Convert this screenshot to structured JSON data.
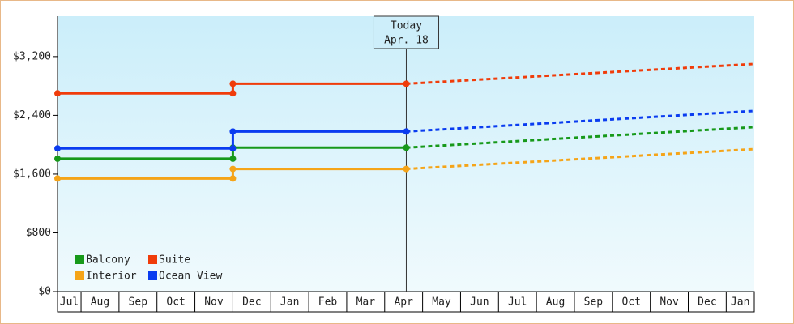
{
  "chart_data": {
    "type": "line",
    "categories": [
      "Jul",
      "Aug",
      "Sep",
      "Oct",
      "Nov",
      "Dec",
      "Jan",
      "Feb",
      "Mar",
      "Apr",
      "May",
      "Jun",
      "Jul",
      "Aug",
      "Sep",
      "Oct",
      "Nov",
      "Dec",
      "Jan"
    ],
    "xlim": [
      0.38,
      18.74
    ],
    "ylim": [
      0,
      3750
    ],
    "yticks": [
      {
        "value": 0,
        "label": "$0"
      },
      {
        "value": 800,
        "label": "$800"
      },
      {
        "value": 1600,
        "label": "$1,600"
      },
      {
        "value": 2400,
        "label": "$2,400"
      },
      {
        "value": 3200,
        "label": "$3,200"
      }
    ],
    "today": {
      "label": [
        "Today",
        "Apr. 18"
      ],
      "x": 9.57
    },
    "series": [
      {
        "name": "Balcony",
        "color": "#17991a",
        "x": [
          0.38,
          5,
          5,
          9.57
        ],
        "values": [
          1810,
          1810,
          1960,
          1960
        ],
        "forecast": {
          "x": [
            9.57,
            18.74
          ],
          "values": [
            1960,
            2240
          ]
        }
      },
      {
        "name": "Suite",
        "color": "#f03c0a",
        "x": [
          0.38,
          5,
          5,
          9.57
        ],
        "values": [
          2700,
          2700,
          2830,
          2830
        ],
        "forecast": {
          "x": [
            9.57,
            18.74
          ],
          "values": [
            2830,
            3100
          ]
        }
      },
      {
        "name": "Interior",
        "color": "#f5a418",
        "x": [
          0.38,
          5,
          5,
          9.57
        ],
        "values": [
          1540,
          1540,
          1670,
          1670
        ],
        "forecast": {
          "x": [
            9.57,
            18.74
          ],
          "values": [
            1670,
            1940
          ]
        }
      },
      {
        "name": "Ocean View",
        "color": "#0a3cf0",
        "x": [
          0.38,
          5,
          5,
          9.57
        ],
        "values": [
          1950,
          1950,
          2180,
          2180
        ],
        "forecast": {
          "x": [
            9.57,
            18.74
          ],
          "values": [
            2180,
            2460
          ]
        }
      }
    ],
    "legend": "lower left"
  }
}
